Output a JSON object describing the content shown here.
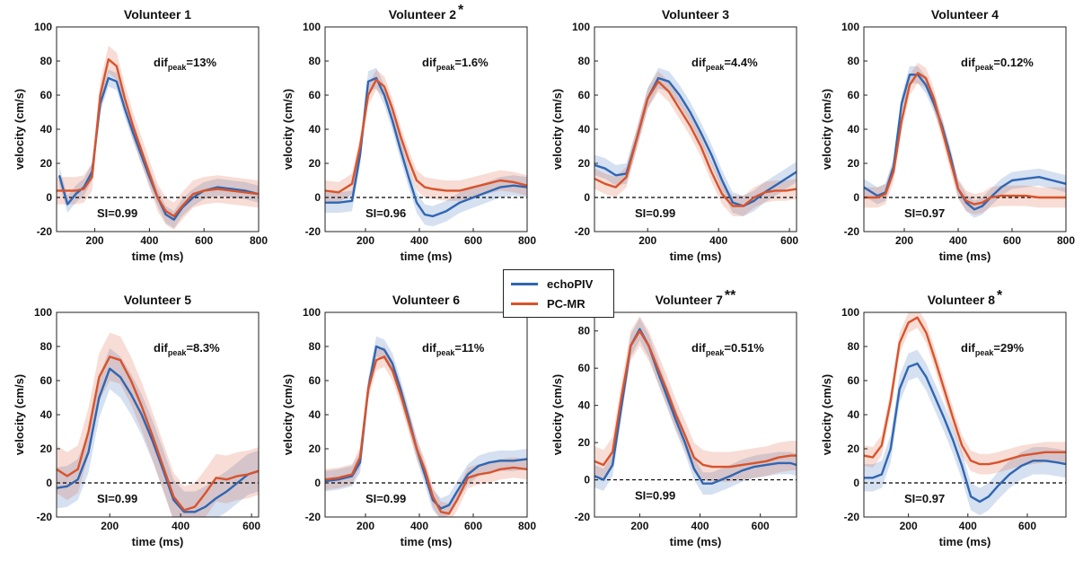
{
  "legend": {
    "items": [
      {
        "label": "echoPIV",
        "color": "#2f66b3"
      },
      {
        "label": "PC-MR",
        "color": "#d9532b"
      }
    ]
  },
  "chart_data": [
    {
      "type": "line",
      "title": "Volunteer 1",
      "marker": "",
      "xlabel": "time (ms)",
      "ylabel": "velocity (cm/s)",
      "xlim": [
        60,
        800
      ],
      "ylim": [
        -20,
        100
      ],
      "xticks": [
        200,
        400,
        600,
        800
      ],
      "yticks": [
        -20,
        0,
        20,
        40,
        60,
        80,
        100
      ],
      "annotations": {
        "dif_label": "dif",
        "dif_sub": "peak",
        "dif_value": "=13%",
        "si": "SI=0.99"
      },
      "series": [
        {
          "name": "echoPIV",
          "color": "#2f66b3",
          "band": 5,
          "x": [
            70,
            100,
            130,
            160,
            190,
            220,
            250,
            280,
            310,
            340,
            370,
            400,
            430,
            460,
            490,
            520,
            560,
            600,
            650,
            700,
            750,
            800
          ],
          "y": [
            13,
            -4,
            2,
            6,
            15,
            55,
            70,
            68,
            52,
            38,
            25,
            12,
            0,
            -10,
            -13,
            -6,
            0,
            4,
            6,
            5,
            4,
            2
          ]
        },
        {
          "name": "PC-MR",
          "color": "#d9532b",
          "band": 8,
          "x": [
            60,
            100,
            130,
            160,
            190,
            220,
            250,
            280,
            310,
            340,
            370,
            400,
            430,
            460,
            490,
            520,
            560,
            600,
            650,
            700,
            750,
            800
          ],
          "y": [
            4,
            4,
            4,
            5,
            12,
            60,
            81,
            77,
            58,
            42,
            28,
            14,
            0,
            -8,
            -11,
            -5,
            2,
            4,
            5,
            4,
            3,
            2
          ]
        }
      ]
    },
    {
      "type": "line",
      "title": "Volunteer 2",
      "marker": "*",
      "xlabel": "time (ms)",
      "ylabel": "velocity (cm/s)",
      "xlim": [
        50,
        800
      ],
      "ylim": [
        -20,
        100
      ],
      "xticks": [
        200,
        400,
        600,
        800
      ],
      "yticks": [
        -20,
        0,
        20,
        40,
        60,
        80,
        100
      ],
      "annotations": {
        "dif_label": "dif",
        "dif_sub": "peak",
        "dif_value": "=1.6%",
        "si": "SI=0.96"
      },
      "series": [
        {
          "name": "echoPIV",
          "color": "#2f66b3",
          "band": 6,
          "x": [
            50,
            100,
            150,
            180,
            210,
            240,
            270,
            300,
            330,
            360,
            390,
            420,
            450,
            500,
            550,
            600,
            650,
            700,
            750,
            800
          ],
          "y": [
            -3,
            -3,
            -2,
            25,
            68,
            70,
            60,
            45,
            28,
            12,
            -3,
            -10,
            -11,
            -8,
            -3,
            0,
            3,
            6,
            7,
            6
          ]
        },
        {
          "name": "PC-MR",
          "color": "#d9532b",
          "band": 6,
          "x": [
            50,
            100,
            150,
            180,
            210,
            240,
            270,
            300,
            330,
            360,
            390,
            420,
            450,
            500,
            550,
            600,
            650,
            700,
            750,
            800
          ],
          "y": [
            4,
            3,
            8,
            30,
            60,
            69,
            65,
            52,
            36,
            22,
            10,
            6,
            5,
            4,
            4,
            6,
            8,
            10,
            9,
            7
          ]
        }
      ]
    },
    {
      "type": "line",
      "title": "Volunteer 3",
      "marker": "",
      "xlabel": "time (ms)",
      "ylabel": "velocity (cm/s)",
      "xlim": [
        50,
        620
      ],
      "ylim": [
        -20,
        100
      ],
      "xticks": [
        200,
        400,
        600
      ],
      "yticks": [
        -20,
        0,
        20,
        40,
        60,
        80,
        100
      ],
      "annotations": {
        "dif_label": "dif",
        "dif_sub": "peak",
        "dif_value": "=4.4%",
        "si": "SI=0.99"
      },
      "series": [
        {
          "name": "echoPIV",
          "color": "#2f66b3",
          "band": 6,
          "x": [
            50,
            80,
            110,
            140,
            170,
            200,
            230,
            260,
            290,
            320,
            350,
            380,
            410,
            440,
            470,
            500,
            530,
            560,
            590,
            620
          ],
          "y": [
            19,
            17,
            13,
            14,
            35,
            58,
            70,
            68,
            60,
            50,
            38,
            25,
            10,
            -3,
            -5,
            -2,
            3,
            7,
            11,
            15
          ]
        },
        {
          "name": "PC-MR",
          "color": "#d9532b",
          "band": 6,
          "x": [
            50,
            80,
            110,
            140,
            170,
            200,
            230,
            260,
            290,
            320,
            350,
            380,
            410,
            440,
            470,
            500,
            530,
            560,
            590,
            620
          ],
          "y": [
            11,
            8,
            6,
            12,
            35,
            58,
            68,
            62,
            52,
            42,
            30,
            15,
            2,
            -5,
            -5,
            0,
            3,
            4,
            4,
            5
          ]
        }
      ]
    },
    {
      "type": "line",
      "title": "Volunteer 4",
      "marker": "",
      "xlabel": "time (ms)",
      "ylabel": "velocity (cm/s)",
      "xlim": [
        50,
        800
      ],
      "ylim": [
        -20,
        100
      ],
      "xticks": [
        200,
        400,
        600,
        800
      ],
      "yticks": [
        -20,
        0,
        20,
        40,
        60,
        80,
        100
      ],
      "annotations": {
        "dif_label": "dif",
        "dif_sub": "peak",
        "dif_value": "=0.12%",
        "si": "SI=0.97"
      },
      "series": [
        {
          "name": "echoPIV",
          "color": "#2f66b3",
          "band": 5,
          "x": [
            50,
            100,
            130,
            160,
            190,
            220,
            250,
            280,
            310,
            340,
            370,
            400,
            430,
            460,
            490,
            520,
            560,
            600,
            650,
            700,
            750,
            800
          ],
          "y": [
            6,
            1,
            3,
            18,
            55,
            72,
            72,
            66,
            55,
            42,
            25,
            5,
            -3,
            -7,
            -5,
            0,
            6,
            10,
            11,
            12,
            10,
            8
          ]
        },
        {
          "name": "PC-MR",
          "color": "#d9532b",
          "band": 6,
          "x": [
            50,
            100,
            130,
            160,
            190,
            220,
            250,
            280,
            310,
            340,
            370,
            400,
            430,
            460,
            490,
            520,
            560,
            600,
            650,
            700,
            750,
            800
          ],
          "y": [
            0,
            0,
            2,
            15,
            45,
            66,
            73,
            70,
            58,
            40,
            22,
            5,
            -2,
            -4,
            -3,
            0,
            1,
            1,
            1,
            0,
            0,
            0
          ]
        }
      ]
    },
    {
      "type": "line",
      "title": "Volunteer 5",
      "marker": "",
      "xlabel": "time (ms)",
      "ylabel": "velocity (cm/s)",
      "xlim": [
        50,
        620
      ],
      "ylim": [
        -20,
        100
      ],
      "xticks": [
        200,
        400,
        600
      ],
      "yticks": [
        -20,
        0,
        20,
        40,
        60,
        80,
        100
      ],
      "annotations": {
        "dif_label": "dif",
        "dif_sub": "peak",
        "dif_value": "=8.3%",
        "si": "SI=0.99"
      },
      "series": [
        {
          "name": "echoPIV",
          "color": "#2f66b3",
          "band": 12,
          "x": [
            50,
            80,
            110,
            140,
            170,
            200,
            230,
            260,
            290,
            320,
            350,
            380,
            410,
            440,
            470,
            500,
            530,
            560,
            590,
            620
          ],
          "y": [
            -3,
            -2,
            2,
            18,
            50,
            67,
            62,
            52,
            40,
            25,
            8,
            -10,
            -17,
            -17,
            -14,
            -9,
            -5,
            0,
            5,
            7
          ]
        },
        {
          "name": "PC-MR",
          "color": "#d9532b",
          "band": 14,
          "x": [
            50,
            80,
            110,
            140,
            170,
            200,
            230,
            260,
            290,
            320,
            350,
            380,
            410,
            440,
            470,
            500,
            530,
            560,
            590,
            620
          ],
          "y": [
            8,
            4,
            8,
            30,
            62,
            74,
            72,
            60,
            45,
            28,
            10,
            -8,
            -16,
            -14,
            -6,
            3,
            2,
            4,
            5,
            7
          ]
        }
      ]
    },
    {
      "type": "line",
      "title": "Volunteer 6",
      "marker": "",
      "xlabel": "time (ms)",
      "ylabel": "velocity (cm/s)",
      "xlim": [
        50,
        800
      ],
      "ylim": [
        -20,
        100
      ],
      "xticks": [
        200,
        400,
        600,
        800
      ],
      "yticks": [
        -20,
        0,
        20,
        40,
        60,
        80,
        100
      ],
      "annotations": {
        "dif_label": "dif",
        "dif_sub": "peak",
        "dif_value": "=11%",
        "si": "SI=0.99"
      },
      "series": [
        {
          "name": "echoPIV",
          "color": "#2f66b3",
          "band": 6,
          "x": [
            50,
            100,
            150,
            180,
            210,
            240,
            270,
            300,
            330,
            360,
            390,
            420,
            450,
            480,
            510,
            540,
            580,
            620,
            660,
            700,
            750,
            800
          ],
          "y": [
            1,
            2,
            4,
            12,
            55,
            80,
            78,
            70,
            55,
            38,
            20,
            5,
            -10,
            -15,
            -13,
            -5,
            5,
            10,
            12,
            13,
            13,
            14
          ]
        },
        {
          "name": "PC-MR",
          "color": "#d9532b",
          "band": 6,
          "x": [
            50,
            100,
            150,
            180,
            210,
            240,
            270,
            300,
            330,
            360,
            390,
            420,
            450,
            480,
            510,
            540,
            580,
            620,
            660,
            700,
            750,
            800
          ],
          "y": [
            2,
            3,
            5,
            15,
            55,
            72,
            74,
            66,
            52,
            36,
            20,
            8,
            -8,
            -17,
            -18,
            -10,
            3,
            5,
            6,
            8,
            9,
            8
          ]
        }
      ]
    },
    {
      "type": "line",
      "title": "Volunteer 7",
      "marker": "**",
      "xlabel": "time (ms)",
      "ylabel": "velocity (cm/s)",
      "xlim": [
        50,
        720
      ],
      "ylim": [
        -20,
        90
      ],
      "xticks": [
        200,
        400,
        600
      ],
      "yticks": [
        -20,
        0,
        20,
        40,
        60,
        80
      ],
      "annotations": {
        "dif_label": "dif",
        "dif_sub": "peak",
        "dif_value": "=0.51%",
        "si": "SI=0.99"
      },
      "series": [
        {
          "name": "echoPIV",
          "color": "#2f66b3",
          "band": 6,
          "x": [
            50,
            80,
            110,
            140,
            170,
            200,
            230,
            260,
            290,
            320,
            350,
            380,
            410,
            440,
            470,
            500,
            540,
            580,
            620,
            660,
            700,
            720
          ],
          "y": [
            2,
            0,
            8,
            40,
            72,
            81,
            72,
            58,
            45,
            32,
            20,
            6,
            -2,
            -2,
            0,
            2,
            5,
            7,
            8,
            9,
            9,
            8
          ]
        },
        {
          "name": "PC-MR",
          "color": "#d9532b",
          "band": 8,
          "x": [
            50,
            80,
            110,
            140,
            170,
            200,
            230,
            260,
            290,
            320,
            350,
            380,
            410,
            440,
            470,
            500,
            540,
            580,
            620,
            660,
            700,
            720
          ],
          "y": [
            10,
            8,
            15,
            45,
            72,
            80,
            72,
            60,
            48,
            35,
            24,
            12,
            8,
            7,
            7,
            7,
            8,
            9,
            10,
            12,
            13,
            13
          ]
        }
      ]
    },
    {
      "type": "line",
      "title": "Volunteer 8",
      "marker": "*",
      "xlabel": "time (ms)",
      "ylabel": "velocity (cm/s)",
      "xlim": [
        50,
        730
      ],
      "ylim": [
        -20,
        100
      ],
      "xticks": [
        200,
        400,
        600
      ],
      "yticks": [
        -20,
        0,
        20,
        40,
        60,
        80,
        100
      ],
      "annotations": {
        "dif_label": "dif",
        "dif_sub": "peak",
        "dif_value": "=29%",
        "si": "SI=0.97"
      },
      "series": [
        {
          "name": "echoPIV",
          "color": "#2f66b3",
          "band": 8,
          "x": [
            50,
            80,
            110,
            140,
            170,
            200,
            230,
            260,
            290,
            320,
            350,
            380,
            410,
            440,
            470,
            500,
            540,
            580,
            620,
            660,
            700,
            730
          ],
          "y": [
            3,
            3,
            5,
            20,
            55,
            68,
            70,
            62,
            50,
            38,
            25,
            10,
            -8,
            -11,
            -8,
            -2,
            5,
            10,
            13,
            13,
            12,
            11
          ]
        },
        {
          "name": "PC-MR",
          "color": "#d9532b",
          "band": 6,
          "x": [
            50,
            80,
            110,
            140,
            170,
            200,
            230,
            260,
            290,
            320,
            350,
            380,
            410,
            440,
            470,
            500,
            540,
            580,
            620,
            660,
            700,
            730
          ],
          "y": [
            16,
            15,
            22,
            48,
            82,
            94,
            97,
            88,
            72,
            55,
            38,
            22,
            13,
            11,
            11,
            12,
            14,
            16,
            17,
            18,
            18,
            18
          ]
        }
      ]
    }
  ]
}
